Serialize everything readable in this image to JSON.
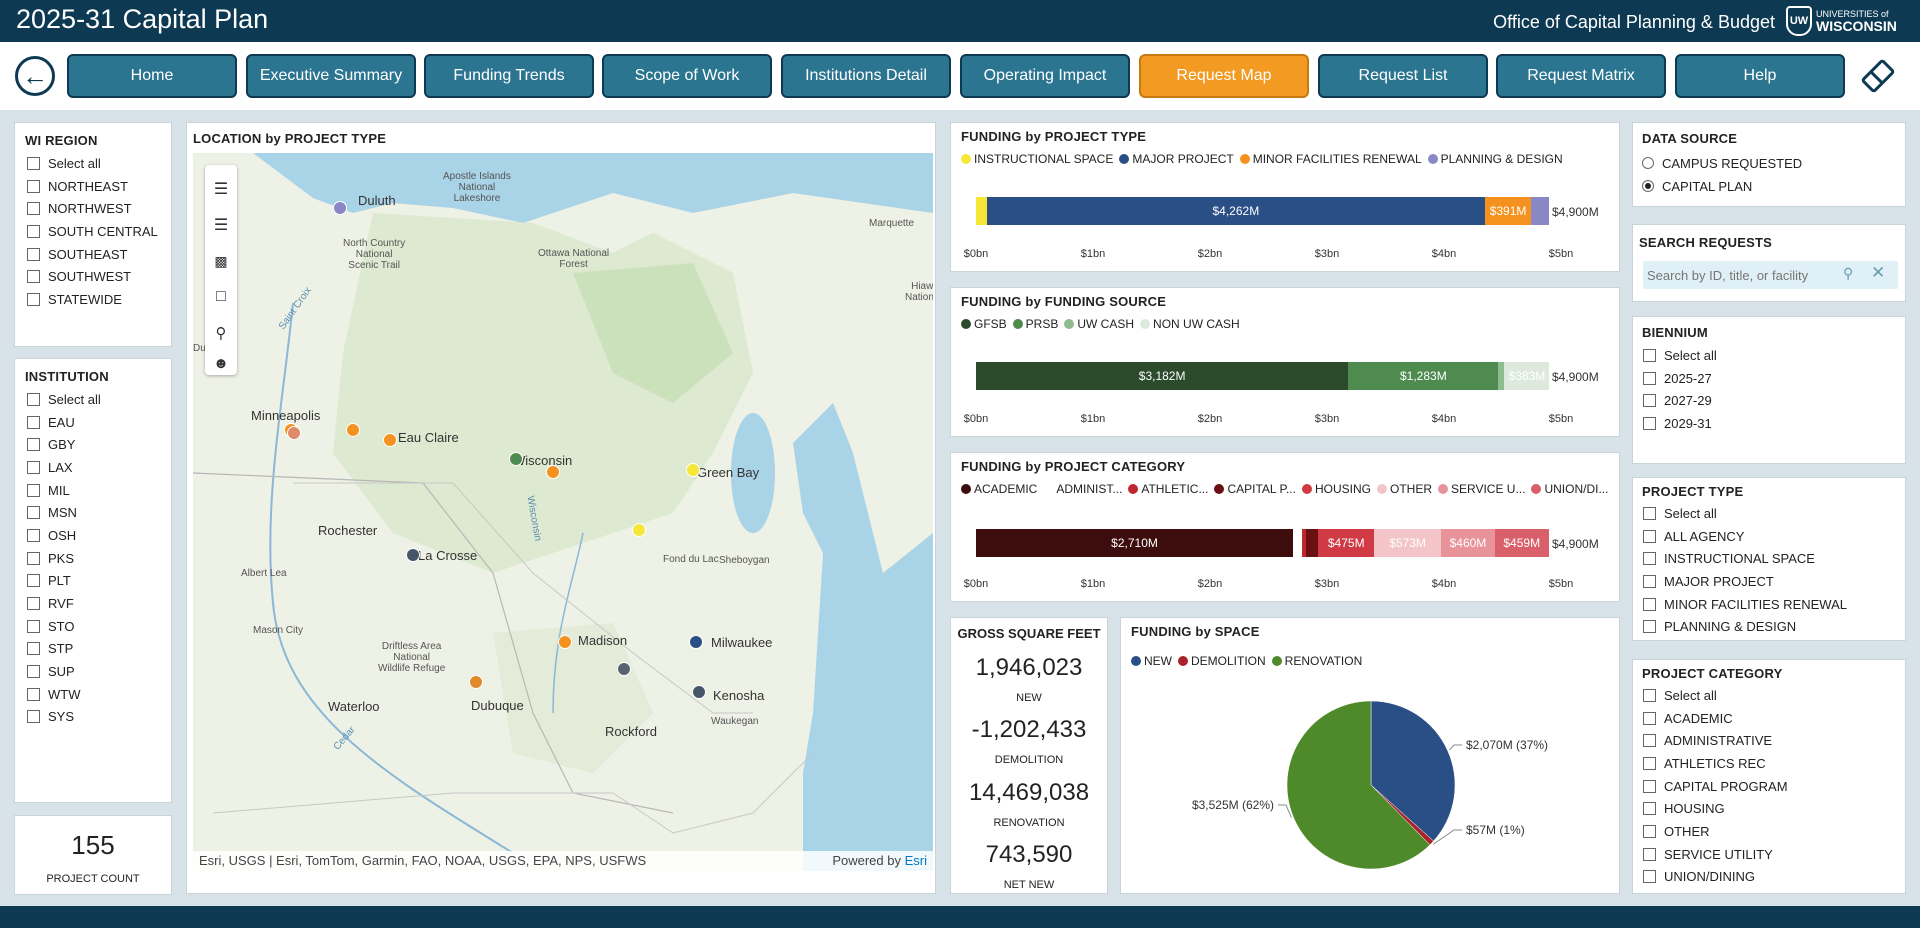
{
  "header": {
    "title": "2025-31 Capital Plan",
    "office": "Office of Capital Planning & Budget",
    "logo_small": "UNIVERSITIES of",
    "logo_big": "WISCONSIN",
    "logo_mark": "UW"
  },
  "nav": {
    "back_icon": "back-arrow-icon",
    "buttons": [
      "Home",
      "Executive Summary",
      "Funding Trends",
      "Scope of Work",
      "Institutions Detail",
      "Operating Impact",
      "Request Map",
      "Request List",
      "Request Matrix",
      "Help"
    ],
    "active": "Request Map",
    "reset_icon": "eraser-icon",
    "active_color": "#f29a21",
    "button_color": "#2b7591"
  },
  "wi_region": {
    "title": "WI REGION",
    "items": [
      "Select all",
      "NORTHEAST",
      "NORTHWEST",
      "SOUTH CENTRAL",
      "SOUTHEAST",
      "SOUTHWEST",
      "STATEWIDE"
    ]
  },
  "institution": {
    "title": "INSTITUTION",
    "items": [
      "Select all",
      "EAU",
      "GBY",
      "LAX",
      "MIL",
      "MSN",
      "OSH",
      "PKS",
      "PLT",
      "RVF",
      "STO",
      "STP",
      "SUP",
      "WTW",
      "SYS"
    ]
  },
  "project_count": {
    "value": "155",
    "label": "PROJECT COUNT"
  },
  "map": {
    "title": "LOCATION by PROJECT TYPE",
    "attribution": "Esri, USGS | Esri, TomTom, Garmin, FAO, NOAA, USGS, EPA, NPS, USFWS",
    "powered": "Powered by",
    "powered_brand": "Esri",
    "tools": [
      "menu-icon",
      "layers-icon",
      "qr-icon",
      "select-rect-icon",
      "search-icon",
      "person-icon"
    ],
    "places": [
      {
        "name": "Duluth",
        "big": true
      },
      {
        "name": "Apostle Islands\nNational\nLakeshore",
        "big": false
      },
      {
        "name": "Marquette",
        "big": false
      },
      {
        "name": "North Country\nNational\nScenic Trail",
        "big": false
      },
      {
        "name": "Ottawa National\nForest",
        "big": false
      },
      {
        "name": "Minneapolis",
        "big": true
      },
      {
        "name": "Eau Claire",
        "big": true
      },
      {
        "name": "Wisconsin",
        "big": true
      },
      {
        "name": "Green Bay",
        "big": true
      },
      {
        "name": "Rochester",
        "big": true
      },
      {
        "name": "La Crosse",
        "big": true
      },
      {
        "name": "Albert Lea",
        "big": false
      },
      {
        "name": "Fond du Lac",
        "big": false
      },
      {
        "name": "Sheboygan",
        "big": false
      },
      {
        "name": "Mason City",
        "big": false
      },
      {
        "name": "Madison",
        "big": true
      },
      {
        "name": "Milwaukee",
        "big": true
      },
      {
        "name": "Driftless Area\nNational\nWildlife Refuge",
        "big": false
      },
      {
        "name": "Waterloo",
        "big": true
      },
      {
        "name": "Dubuque",
        "big": true
      },
      {
        "name": "Kenosha",
        "big": true
      },
      {
        "name": "Waukegan",
        "big": false
      },
      {
        "name": "Rockford",
        "big": true
      },
      {
        "name": "Saint Croix",
        "big": false
      },
      {
        "name": "Wisconsin",
        "big": false
      },
      {
        "name": "Hiaw\nNationa",
        "big": false
      },
      {
        "name": "Dul",
        "big": false
      },
      {
        "name": "Cedar",
        "big": false
      }
    ]
  },
  "funding_project_type": {
    "title": "FUNDING by PROJECT TYPE",
    "legend": [
      {
        "name": "INSTRUCTIONAL SPACE",
        "color": "#f5e637"
      },
      {
        "name": "MAJOR PROJECT",
        "color": "#2a4e86"
      },
      {
        "name": "MINOR FACILITIES RENEWAL",
        "color": "#f5911e"
      },
      {
        "name": "PLANNING & DESIGN",
        "color": "#8a87c6"
      }
    ],
    "total": "$4,900M"
  },
  "funding_source": {
    "title": "FUNDING by FUNDING SOURCE",
    "legend": [
      {
        "name": "GFSB",
        "color": "#2c4a2c"
      },
      {
        "name": "PRSB",
        "color": "#4f8a4f"
      },
      {
        "name": "UW CASH",
        "color": "#8fbc8f"
      },
      {
        "name": "NON UW CASH",
        "color": "#dde9dd"
      }
    ],
    "total": "$4,900M"
  },
  "funding_category": {
    "title": "FUNDING by PROJECT CATEGORY",
    "legend": [
      {
        "name": "ACADEMIC",
        "color": "#3d0d0d"
      },
      {
        "name": "ADMINIST...",
        "color": "#ffffff"
      },
      {
        "name": "ATHLETIC...",
        "color": "#c0262e"
      },
      {
        "name": "CAPITAL P...",
        "color": "#6a0f12"
      },
      {
        "name": "HOUSING",
        "color": "#cf3a44"
      },
      {
        "name": "OTHER",
        "color": "#f3c5c8"
      },
      {
        "name": "SERVICE U...",
        "color": "#e8939a"
      },
      {
        "name": "UNION/DI...",
        "color": "#d9606a"
      }
    ],
    "total": "$4,900M"
  },
  "chart_data": [
    {
      "type": "bar",
      "title": "FUNDING by PROJECT TYPE",
      "orientation": "horizontal-stacked",
      "unit": "$M",
      "series": [
        {
          "name": "INSTRUCTIONAL SPACE",
          "values": [
            90
          ]
        },
        {
          "name": "MAJOR PROJECT",
          "values": [
            4262
          ],
          "label": "$4,262M"
        },
        {
          "name": "MINOR FACILITIES RENEWAL",
          "values": [
            391
          ],
          "label": "$391M"
        },
        {
          "name": "PLANNING & DESIGN",
          "values": [
            157
          ]
        }
      ],
      "xticks": [
        "$0bn",
        "$1bn",
        "$2bn",
        "$3bn",
        "$4bn",
        "$5bn"
      ],
      "xlim": [
        0,
        5000
      ],
      "total": 4900
    },
    {
      "type": "bar",
      "title": "FUNDING by FUNDING SOURCE",
      "orientation": "horizontal-stacked",
      "unit": "$M",
      "series": [
        {
          "name": "GFSB",
          "values": [
            3182
          ],
          "label": "$3,182M"
        },
        {
          "name": "PRSB",
          "values": [
            1283
          ],
          "label": "$1,283M"
        },
        {
          "name": "UW CASH",
          "values": [
            52
          ]
        },
        {
          "name": "NON UW CASH",
          "values": [
            383
          ],
          "label": "$383M"
        }
      ],
      "xticks": [
        "$0bn",
        "$1bn",
        "$2bn",
        "$3bn",
        "$4bn",
        "$5bn"
      ],
      "xlim": [
        0,
        5000
      ],
      "total": 4900
    },
    {
      "type": "bar",
      "title": "FUNDING by PROJECT CATEGORY",
      "orientation": "horizontal-stacked",
      "unit": "$M",
      "series": [
        {
          "name": "ACADEMIC",
          "values": [
            2710
          ],
          "label": "$2,710M"
        },
        {
          "name": "ADMINIST...",
          "values": [
            75
          ]
        },
        {
          "name": "ATHLETIC...",
          "values": [
            35
          ]
        },
        {
          "name": "CAPITAL P...",
          "values": [
            107
          ]
        },
        {
          "name": "HOUSING",
          "values": [
            475
          ],
          "label": "$475M"
        },
        {
          "name": "OTHER",
          "values": [
            573
          ],
          "label": "$573M"
        },
        {
          "name": "SERVICE U...",
          "values": [
            460
          ],
          "label": "$460M"
        },
        {
          "name": "UNION/DI...",
          "values": [
            459
          ],
          "label": "$459M"
        }
      ],
      "xticks": [
        "$0bn",
        "$1bn",
        "$2bn",
        "$3bn",
        "$4bn",
        "$5bn"
      ],
      "xlim": [
        0,
        5000
      ],
      "total": 4900
    },
    {
      "type": "pie",
      "title": "FUNDING by SPACE",
      "categories": [
        "NEW",
        "DEMOLITION",
        "RENOVATION"
      ],
      "values": [
        2070,
        57,
        3525
      ],
      "labels": [
        "$2,070M (37%)",
        "$57M (1%)",
        "$3,525M (62%)"
      ],
      "colors": [
        "#2a4e86",
        "#a8232b",
        "#4f8a2a"
      ]
    }
  ],
  "gsf": {
    "title": "GROSS SQUARE FEET",
    "items": [
      {
        "value": "1,946,023",
        "label": "NEW"
      },
      {
        "value": "-1,202,433",
        "label": "DEMOLITION"
      },
      {
        "value": "14,469,038",
        "label": "RENOVATION"
      },
      {
        "value": "743,590",
        "label": "NET NEW"
      }
    ]
  },
  "space": {
    "title": "FUNDING by SPACE"
  },
  "data_source": {
    "title": "DATA SOURCE",
    "options": [
      "CAMPUS REQUESTED",
      "CAPITAL PLAN"
    ],
    "selected": "CAPITAL PLAN"
  },
  "search": {
    "title": "SEARCH REQUESTS",
    "placeholder": "Search by ID, title, or facility"
  },
  "biennium": {
    "title": "BIENNIUM",
    "items": [
      "Select all",
      "2025-27",
      "2027-29",
      "2029-31"
    ]
  },
  "project_type": {
    "title": "PROJECT TYPE",
    "items": [
      "Select all",
      "ALL AGENCY",
      "INSTRUCTIONAL SPACE",
      "MAJOR PROJECT",
      "MINOR FACILITIES RENEWAL",
      "PLANNING & DESIGN"
    ]
  },
  "project_category": {
    "title": "PROJECT CATEGORY",
    "items": [
      "Select all",
      "ACADEMIC",
      "ADMINISTRATIVE",
      "ATHLETICS REC",
      "CAPITAL PROGRAM",
      "HOUSING",
      "OTHER",
      "SERVICE UTILITY",
      "UNION/DINING"
    ]
  }
}
